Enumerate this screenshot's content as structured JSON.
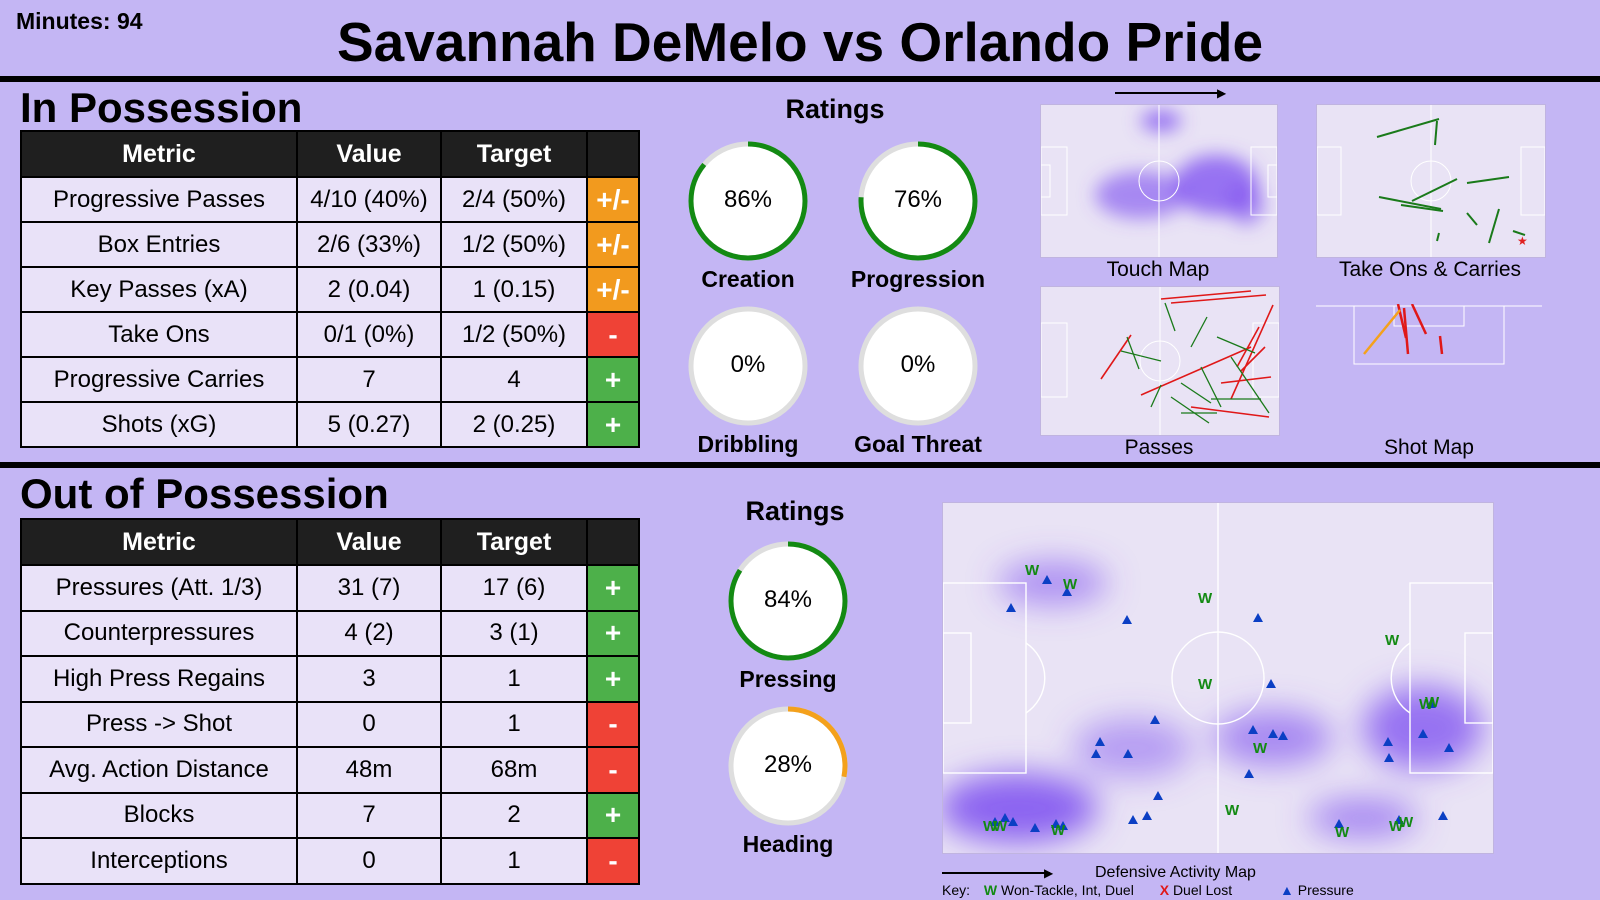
{
  "header": {
    "minutes": "Minutes: 94",
    "title": "Savannah DeMelo vs Orlando Pride"
  },
  "in_possession": {
    "title": "In Possession",
    "columns": [
      "Metric",
      "Value",
      "Target",
      ""
    ],
    "rows": [
      {
        "metric": "Progressive Passes",
        "value": "4/10 (40%)",
        "target": "2/4 (50%)",
        "indicator": "+/-"
      },
      {
        "metric": "Box Entries",
        "value": "2/6 (33%)",
        "target": "1/2 (50%)",
        "indicator": "+/-"
      },
      {
        "metric": "Key Passes (xA)",
        "value": "2 (0.04)",
        "target": "1 (0.15)",
        "indicator": "+/-"
      },
      {
        "metric": "Take Ons",
        "value": "0/1 (0%)",
        "target": "1/2 (50%)",
        "indicator": "-"
      },
      {
        "metric": "Progressive Carries",
        "value": "7",
        "target": "4",
        "indicator": "+"
      },
      {
        "metric": "Shots (xG)",
        "value": "5 (0.27)",
        "target": "2 (0.25)",
        "indicator": "+"
      }
    ],
    "ratings_title": "Ratings",
    "ratings": [
      {
        "label": "Creation",
        "value": 86,
        "text": "86%",
        "color": "#138a13"
      },
      {
        "label": "Progression",
        "value": 76,
        "text": "76%",
        "color": "#138a13"
      },
      {
        "label": "Dribbling",
        "value": 0,
        "text": "0%",
        "color": "#138a13"
      },
      {
        "label": "Goal Threat",
        "value": 0,
        "text": "0%",
        "color": "#138a13"
      }
    ],
    "maps": {
      "touch_map": "Touch Map",
      "take_ons_carries": "Take Ons & Carries",
      "passes": "Passes",
      "shot_map": "Shot Map"
    }
  },
  "out_of_possession": {
    "title": "Out of Possession",
    "columns": [
      "Metric",
      "Value",
      "Target",
      ""
    ],
    "rows": [
      {
        "metric": "Pressures (Att. 1/3)",
        "value": "31 (7)",
        "target": "17 (6)",
        "indicator": "+"
      },
      {
        "metric": "Counterpressures",
        "value": "4 (2)",
        "target": "3 (1)",
        "indicator": "+"
      },
      {
        "metric": "High Press Regains",
        "value": "3",
        "target": "1",
        "indicator": "+"
      },
      {
        "metric": "Press -> Shot",
        "value": "0",
        "target": "1",
        "indicator": "-"
      },
      {
        "metric": "Avg. Action Distance",
        "value": "48m",
        "target": "68m",
        "indicator": "-"
      },
      {
        "metric": "Blocks",
        "value": "7",
        "target": "2",
        "indicator": "+"
      },
      {
        "metric": "Interceptions",
        "value": "0",
        "target": "1",
        "indicator": "-"
      }
    ],
    "ratings_title": "Ratings",
    "ratings": [
      {
        "label": "Pressing",
        "value": 84,
        "text": "84%",
        "color": "#138a13"
      },
      {
        "label": "Heading",
        "value": 28,
        "text": "28%",
        "color": "#f4a11c"
      }
    ],
    "defensive_map": {
      "title": "Defensive Activity Map",
      "key_label": "Key:",
      "key_won": "Won-Tackle, Int, Duel",
      "key_lost": "Duel Lost",
      "key_pressure": "Pressure"
    }
  },
  "colors": {
    "background": "#c4b6f4",
    "plus": "#4db04a",
    "mixed": "#f29a1e",
    "minus": "#ef4236",
    "heat": "#7b4cf0"
  },
  "chart_data": [
    {
      "type": "gauge",
      "title": "Ratings",
      "series": [
        {
          "name": "Creation",
          "value": 86
        },
        {
          "name": "Progression",
          "value": 76
        },
        {
          "name": "Dribbling",
          "value": 0
        },
        {
          "name": "Goal Threat",
          "value": 0
        }
      ]
    },
    {
      "type": "gauge",
      "title": "Ratings",
      "series": [
        {
          "name": "Pressing",
          "value": 84
        },
        {
          "name": "Heading",
          "value": 28
        }
      ]
    }
  ]
}
